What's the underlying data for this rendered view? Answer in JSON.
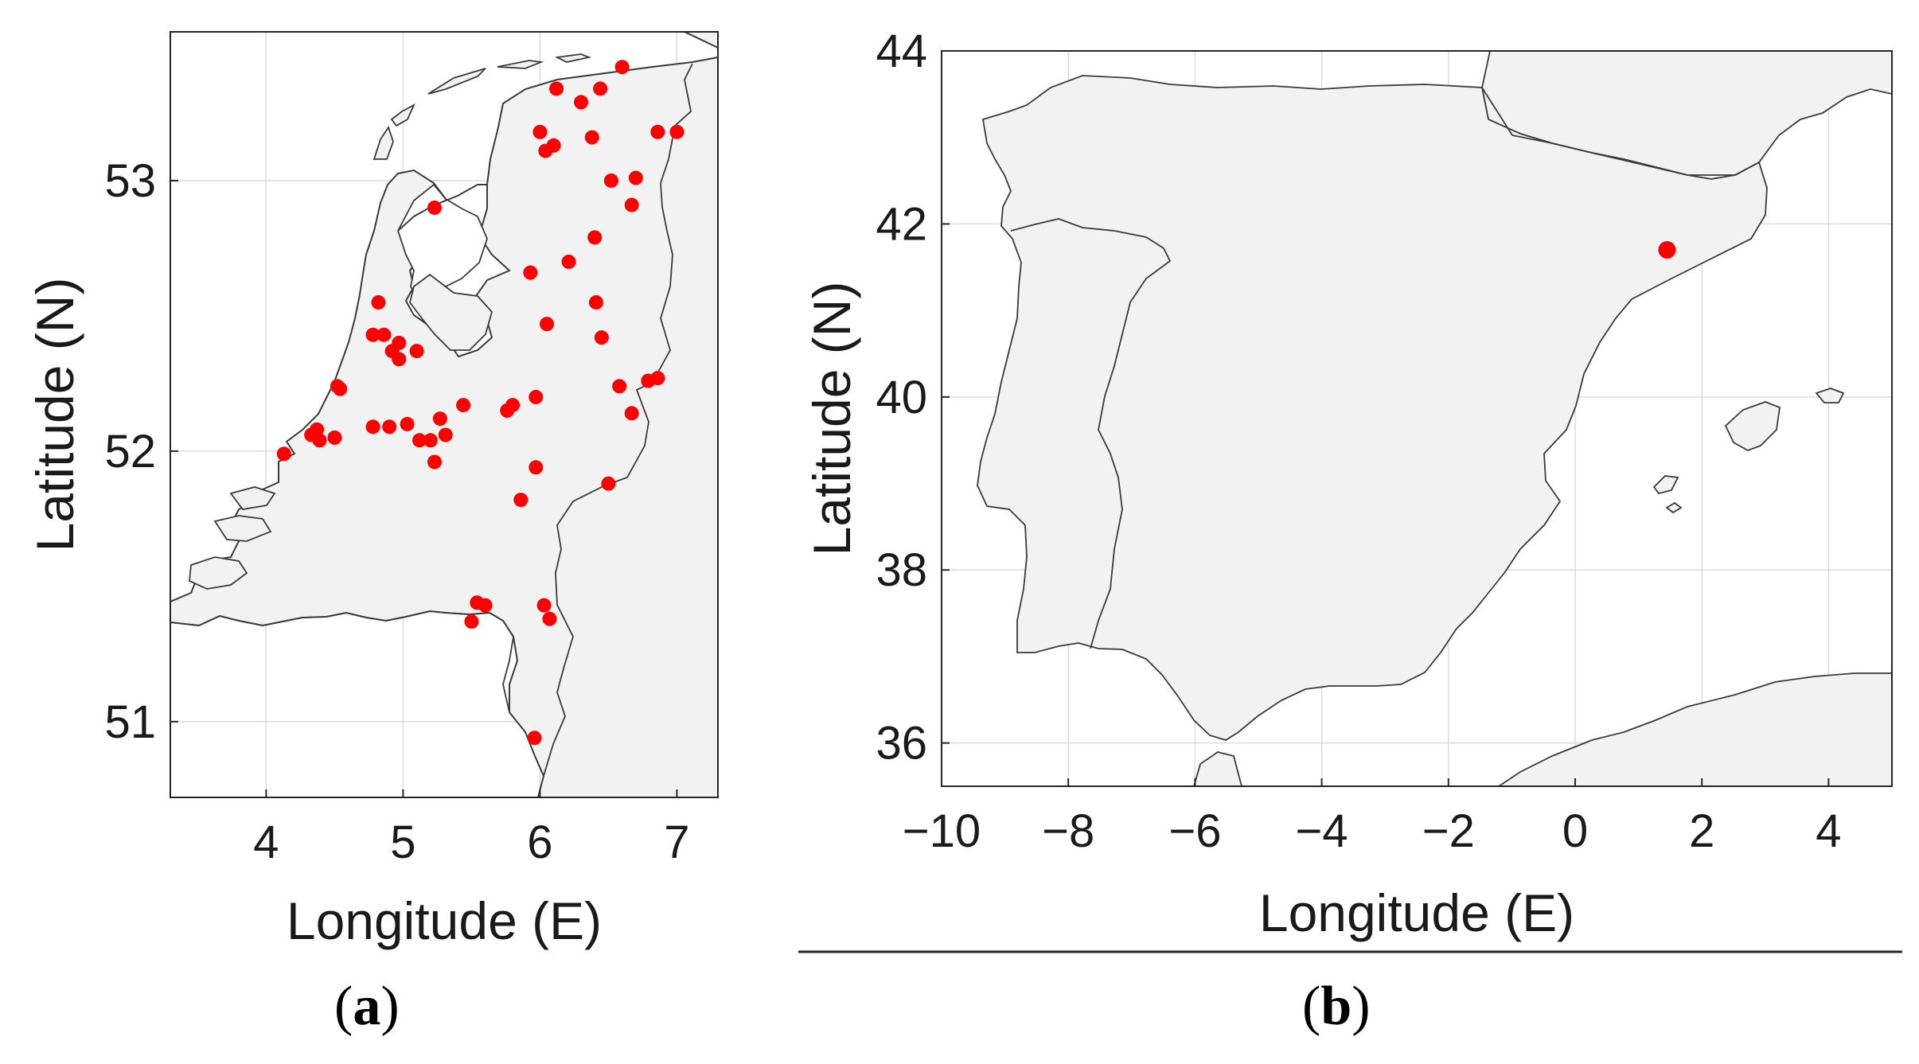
{
  "colors": {
    "land": "#f2f2f2",
    "coast": "#3a3a3a",
    "grid": "#dcdcdc",
    "point": "#ff0000",
    "axis": "#262626"
  },
  "panel_a": {
    "paren_open": "(",
    "letter": "a",
    "paren_close": ")",
    "xlabel": "Longitude (E)",
    "ylabel": "Latitude (N)",
    "xlim": [
      3.3,
      7.3
    ],
    "ylim": [
      50.72,
      53.55
    ],
    "xticks": [
      "4",
      "5",
      "6",
      "7"
    ],
    "yticks": [
      "51",
      "52",
      "53"
    ],
    "points": [
      [
        6.6,
        53.42
      ],
      [
        6.12,
        53.34
      ],
      [
        6.44,
        53.34
      ],
      [
        6.3,
        53.29
      ],
      [
        6.0,
        53.18
      ],
      [
        6.38,
        53.16
      ],
      [
        6.1,
        53.13
      ],
      [
        6.04,
        53.11
      ],
      [
        6.86,
        53.18
      ],
      [
        7.0,
        53.18
      ],
      [
        6.52,
        53.0
      ],
      [
        6.7,
        53.01
      ],
      [
        5.23,
        52.9
      ],
      [
        6.67,
        52.91
      ],
      [
        6.4,
        52.79
      ],
      [
        6.21,
        52.7
      ],
      [
        5.93,
        52.66
      ],
      [
        4.82,
        52.55
      ],
      [
        6.41,
        52.55
      ],
      [
        6.05,
        52.47
      ],
      [
        4.78,
        52.43
      ],
      [
        4.86,
        52.43
      ],
      [
        6.45,
        52.42
      ],
      [
        4.97,
        52.4
      ],
      [
        4.92,
        52.37
      ],
      [
        5.1,
        52.37
      ],
      [
        4.97,
        52.34
      ],
      [
        4.52,
        52.24
      ],
      [
        4.54,
        52.23
      ],
      [
        6.58,
        52.24
      ],
      [
        6.79,
        52.26
      ],
      [
        6.86,
        52.27
      ],
      [
        5.97,
        52.2
      ],
      [
        5.44,
        52.17
      ],
      [
        5.8,
        52.17
      ],
      [
        5.76,
        52.15
      ],
      [
        6.67,
        52.14
      ],
      [
        5.27,
        52.12
      ],
      [
        5.03,
        52.1
      ],
      [
        4.78,
        52.09
      ],
      [
        4.9,
        52.09
      ],
      [
        4.37,
        52.08
      ],
      [
        4.33,
        52.06
      ],
      [
        5.31,
        52.06
      ],
      [
        4.5,
        52.05
      ],
      [
        5.12,
        52.04
      ],
      [
        5.2,
        52.04
      ],
      [
        4.39,
        52.04
      ],
      [
        4.13,
        51.99
      ],
      [
        5.23,
        51.96
      ],
      [
        5.97,
        51.94
      ],
      [
        6.5,
        51.88
      ],
      [
        5.86,
        51.82
      ],
      [
        5.54,
        51.44
      ],
      [
        5.6,
        51.43
      ],
      [
        6.03,
        51.43
      ],
      [
        6.07,
        51.38
      ],
      [
        5.5,
        51.37
      ],
      [
        5.96,
        50.94
      ]
    ]
  },
  "panel_b": {
    "paren_open": "(",
    "letter": "b",
    "paren_close": ")",
    "xlabel": "Longitude (E)",
    "ylabel": "Latitude (N)",
    "xlim": [
      -10,
      5
    ],
    "ylim": [
      35.5,
      44
    ],
    "xticks": [
      "−10",
      "−8",
      "−6",
      "−4",
      "−2",
      "0",
      "2",
      "4"
    ],
    "yticks": [
      "36",
      "38",
      "40",
      "42",
      "44"
    ],
    "points": [
      [
        1.45,
        41.7
      ]
    ]
  }
}
